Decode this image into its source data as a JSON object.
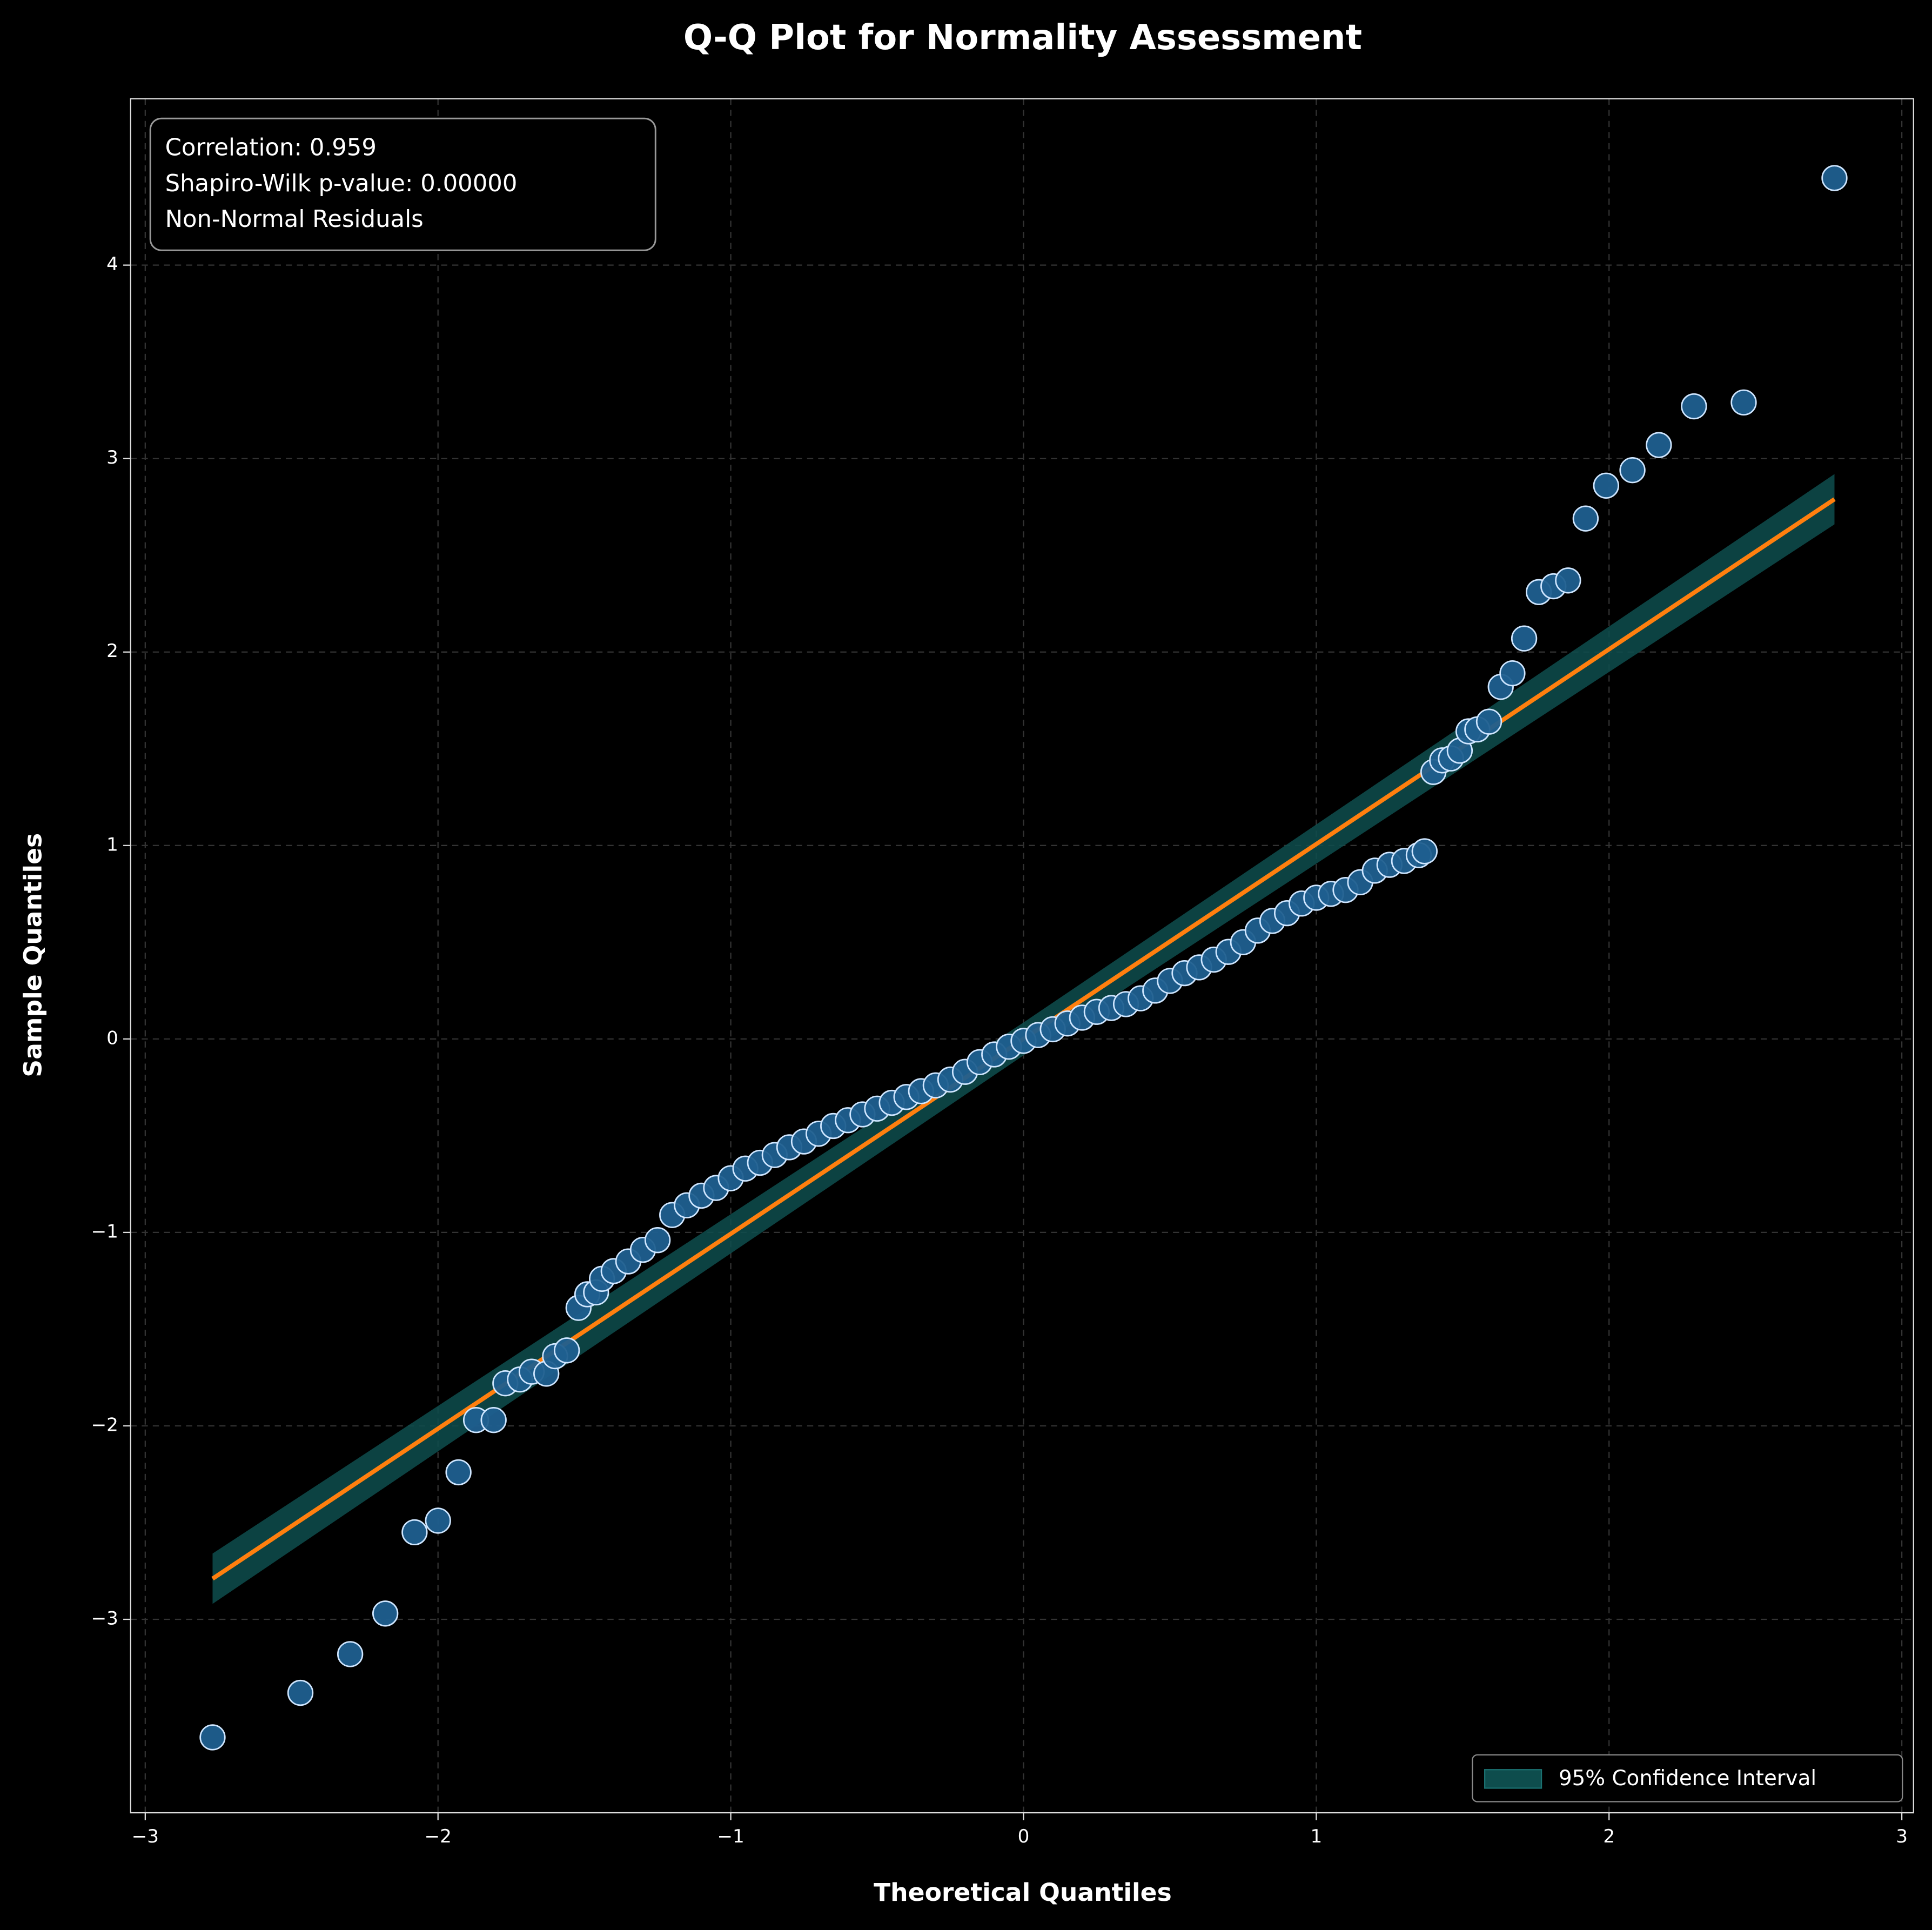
{
  "chart_data": {
    "type": "scatter",
    "title": "Q-Q Plot for Normality Assessment",
    "xlabel": "Theoretical Quantiles",
    "ylabel": "Sample Quantiles",
    "annotation": [
      "Correlation: 0.959",
      "Shapiro-Wilk p-value: 0.00000",
      "Non-Normal Residuals"
    ],
    "color": "#1f5f8f",
    "edgecolor": "#cfe6ff",
    "x": [
      -2.77,
      -2.47,
      -2.3,
      -2.18,
      -2.08,
      -2.0,
      -1.93,
      -1.87,
      -1.81,
      -1.77,
      -1.72,
      -1.68,
      -1.63,
      -1.6,
      -1.56,
      -1.52,
      -1.49,
      -1.46,
      -1.44,
      -1.4,
      -1.35,
      -1.3,
      -1.25,
      -1.2,
      -1.15,
      -1.1,
      -1.05,
      -1.0,
      -0.95,
      -0.9,
      -0.85,
      -0.8,
      -0.75,
      -0.7,
      -0.65,
      -0.6,
      -0.55,
      -0.5,
      -0.45,
      -0.4,
      -0.35,
      -0.3,
      -0.25,
      -0.2,
      -0.15,
      -0.1,
      -0.05,
      0,
      0.05,
      0.1,
      0.15,
      0.2,
      0.25,
      0.3,
      0.35,
      0.4,
      0.45,
      0.5,
      0.55,
      0.6,
      0.65,
      0.7,
      0.75,
      0.8,
      0.85,
      0.9,
      0.95,
      1.0,
      1.05,
      1.1,
      1.15,
      1.2,
      1.25,
      1.3,
      1.35,
      1.37,
      1.4,
      1.43,
      1.46,
      1.49,
      1.52,
      1.55,
      1.59,
      1.63,
      1.67,
      1.71,
      1.76,
      1.81,
      1.86,
      1.92,
      1.99,
      2.08,
      2.17,
      2.29,
      2.46,
      2.77
    ],
    "values": [
      -3.61,
      -3.38,
      -3.18,
      -2.97,
      -2.55,
      -2.49,
      -2.24,
      -1.97,
      -1.97,
      -1.78,
      -1.76,
      -1.72,
      -1.73,
      -1.64,
      -1.61,
      -1.39,
      -1.32,
      -1.31,
      -1.24,
      -1.2,
      -1.15,
      -1.09,
      -1.04,
      -0.91,
      -0.86,
      -0.81,
      -0.77,
      -0.72,
      -0.67,
      -0.64,
      -0.6,
      -0.56,
      -0.53,
      -0.49,
      -0.45,
      -0.42,
      -0.39,
      -0.36,
      -0.33,
      -0.3,
      -0.27,
      -0.24,
      -0.21,
      -0.17,
      -0.12,
      -0.08,
      -0.04,
      -0.01,
      0.02,
      0.05,
      0.08,
      0.11,
      0.14,
      0.16,
      0.18,
      0.21,
      0.25,
      0.3,
      0.34,
      0.37,
      0.41,
      0.45,
      0.5,
      0.56,
      0.61,
      0.65,
      0.7,
      0.73,
      0.75,
      0.77,
      0.81,
      0.87,
      0.9,
      0.92,
      0.95,
      0.97,
      1.38,
      1.44,
      1.45,
      1.49,
      1.59,
      1.6,
      1.64,
      1.82,
      1.89,
      2.07,
      2.31,
      2.34,
      2.37,
      2.69,
      2.86,
      2.94,
      3.07,
      3.27,
      3.29,
      4.45
    ],
    "fit_line": {
      "x": [
        -2.77,
        2.77
      ],
      "values": [
        -2.79,
        2.79
      ],
      "color": "#ff7f0e"
    },
    "confidence_band": {
      "name": "95% Confidence Interval",
      "color": "#0e4d4d",
      "x": [
        -2.77,
        0,
        2.77
      ],
      "upper": [
        -2.66,
        0.085,
        2.92
      ],
      "lower": [
        -2.92,
        -0.085,
        2.66
      ]
    },
    "legend": "lower right",
    "grid": true,
    "xlim": [
      -3.05,
      3.04
    ],
    "ylim": [
      -4.0,
      4.86
    ],
    "xticks": [
      {
        "value": -3,
        "label": "−3"
      },
      {
        "value": -2,
        "label": "−2"
      },
      {
        "value": -1,
        "label": "−1"
      },
      0,
      1,
      2,
      3
    ],
    "yticks": [
      {
        "value": -3,
        "label": "−3"
      },
      {
        "value": -2,
        "label": "−2"
      },
      {
        "value": -1,
        "label": "−1"
      },
      0,
      1,
      2,
      3,
      4
    ]
  }
}
